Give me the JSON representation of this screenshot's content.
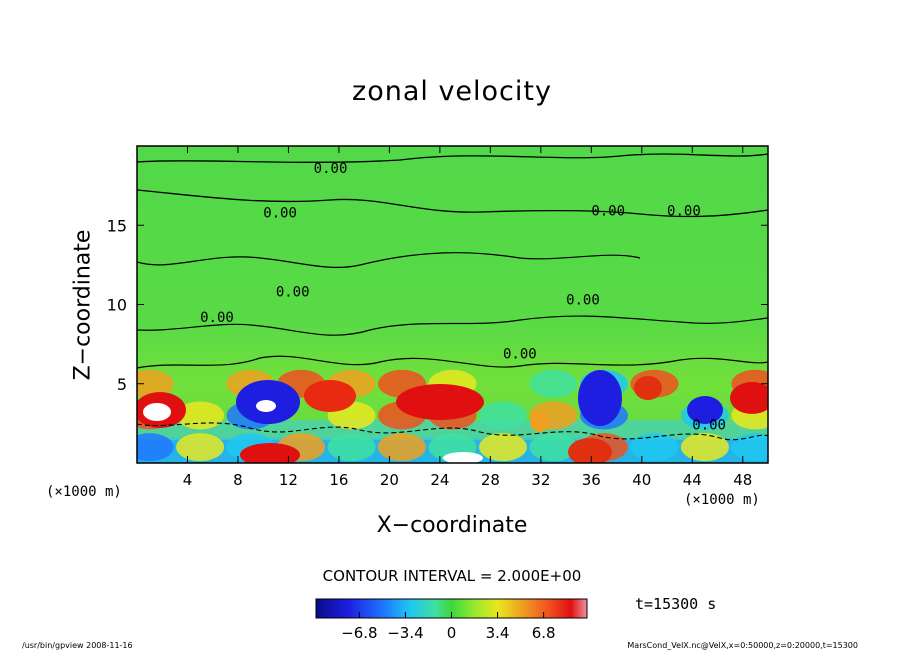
{
  "chart_data": {
    "type": "heatmap",
    "title": "zonal velocity",
    "xlabel": "X−coordinate",
    "ylabel": "Z−coordinate",
    "x_unit": "(×1000 m)",
    "xlim": [
      0,
      50
    ],
    "ylim": [
      0,
      20
    ],
    "x_ticks": [
      "4",
      "8",
      "12",
      "16",
      "20",
      "24",
      "28",
      "32",
      "36",
      "40",
      "44",
      "48"
    ],
    "y_ticks": [
      "5",
      "10",
      "15"
    ],
    "contour_labels": [
      "0.00",
      "0.00",
      "0.00",
      "0.00",
      "0.00",
      "0.00",
      "0.00",
      "0.00",
      "0.00"
    ],
    "contour_interval_text": "CONTOUR INTERVAL = 2.000E+00",
    "colorbar": {
      "range": [
        -10,
        10
      ],
      "tick_labels": [
        "−6.8",
        "−3.4",
        "0",
        "3.4",
        "6.8"
      ]
    },
    "annotation_time": "t=15300 s",
    "data_grid": {
      "x": [
        1,
        5,
        9,
        13,
        17,
        21,
        25,
        29,
        33,
        37,
        41,
        45,
        49
      ],
      "z": [
        1,
        3,
        5,
        7,
        10,
        13,
        16,
        19
      ],
      "values": [
        [
          -6,
          3,
          -5,
          5,
          -3,
          4,
          -2,
          3,
          -2,
          6,
          -5,
          2,
          -4
        ],
        [
          7,
          2,
          -6,
          1,
          3,
          6,
          6,
          -3,
          5,
          -7,
          1,
          -4,
          3
        ],
        [
          4,
          0,
          5,
          6,
          4,
          6,
          3,
          1,
          -3,
          -5,
          6,
          0,
          6
        ],
        [
          1,
          1,
          0,
          0,
          1,
          1,
          1,
          0,
          0,
          0,
          1,
          0,
          1
        ],
        [
          0,
          0,
          0,
          0,
          0,
          0,
          0,
          0,
          0,
          0,
          0,
          0,
          0
        ],
        [
          0,
          0,
          0,
          0,
          0,
          0,
          0,
          0,
          0,
          0,
          0,
          0,
          0
        ],
        [
          0,
          0,
          0,
          0,
          0,
          0,
          0,
          0,
          0,
          0,
          0,
          0,
          0
        ],
        [
          0,
          0,
          0,
          0,
          0,
          0,
          0,
          0,
          0,
          0,
          0,
          0,
          0
        ]
      ]
    },
    "colors": [
      "#0a0a8a",
      "#1e1ee0",
      "#1e78ff",
      "#20c8f0",
      "#40e0a0",
      "#3cd83c",
      "#90e830",
      "#e8e820",
      "#f0a020",
      "#f05020",
      "#e01010",
      "#f090a0"
    ],
    "grid": false
  },
  "footer": {
    "left": "/usr/bin/gpview   2008-11-16",
    "right": "MarsCond_VelX.nc@VelX,x=0:50000,z=0:20000,t=15300"
  }
}
